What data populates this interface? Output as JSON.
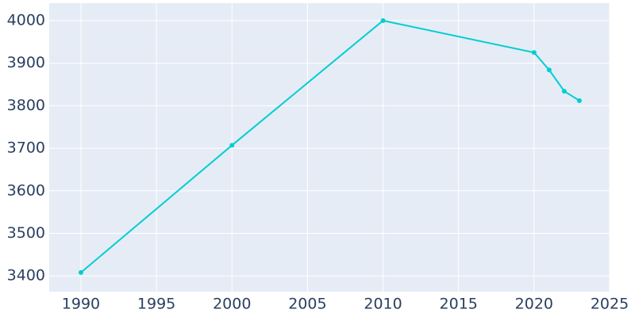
{
  "chart_data": {
    "type": "line",
    "x": [
      1990,
      2000,
      2010,
      2020,
      2021,
      2022,
      2023
    ],
    "series": [
      {
        "color": "#00ced1",
        "values": [
          3408,
          3707,
          4000,
          3925,
          3884,
          3834,
          3812
        ]
      }
    ],
    "xlim": [
      1987.9,
      2025
    ],
    "ylim": [
      3363,
      4041
    ],
    "xticks": [
      1990,
      1995,
      2000,
      2005,
      2010,
      2015,
      2020,
      2025
    ],
    "yticks": [
      3400,
      3500,
      3600,
      3700,
      3800,
      3900,
      4000
    ],
    "grid": true,
    "background": "#e5ecf6"
  }
}
